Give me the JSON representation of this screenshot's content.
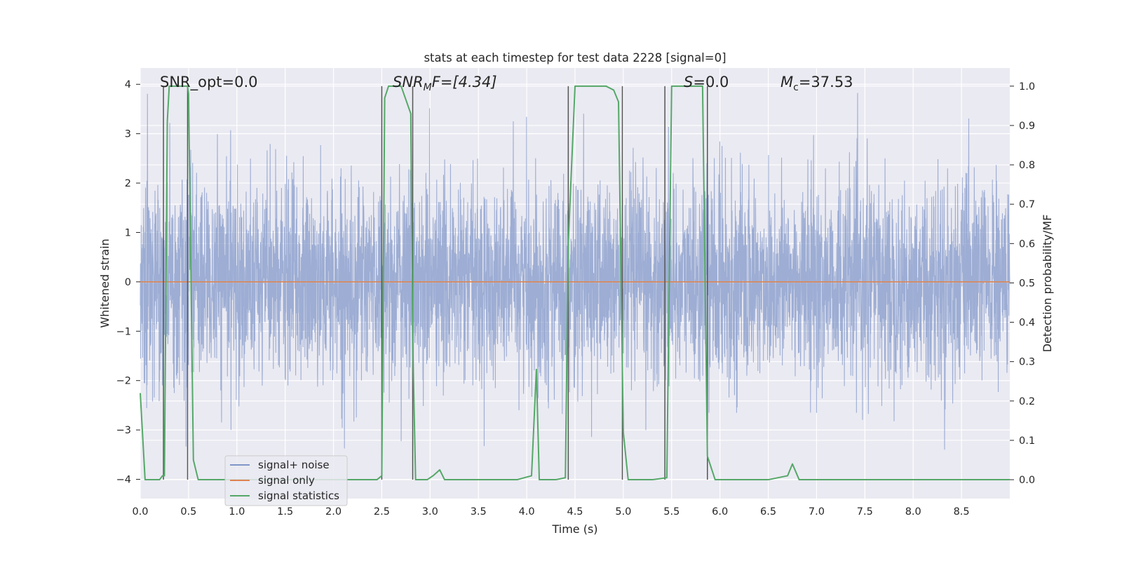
{
  "chart_data": {
    "type": "line",
    "title": "stats at each timestep for test data 2228 [signal=0]",
    "xlabel": "Time (s)",
    "ylabel_left": "Whitened strain",
    "ylabel_right": "Detection probability/MF",
    "xlim": [
      0.0,
      9.0
    ],
    "ylim_left": [
      -4.39,
      4.33
    ],
    "ylim_right": [
      -0.048,
      1.046
    ],
    "x_ticks": [
      "0.0",
      "0.5",
      "1.0",
      "1.5",
      "2.0",
      "2.5",
      "3.0",
      "3.5",
      "4.0",
      "4.5",
      "5.0",
      "5.5",
      "6.0",
      "6.5",
      "7.0",
      "7.5",
      "8.0",
      "8.5"
    ],
    "y_ticks_left": [
      "4",
      "3",
      "2",
      "1",
      "0",
      "−1",
      "−2",
      "−3",
      "−4"
    ],
    "y_ticks_left_values": [
      4,
      3,
      2,
      1,
      0,
      -1,
      -2,
      -3,
      -4
    ],
    "y_ticks_right": [
      "1.0",
      "0.9",
      "0.8",
      "0.7",
      "0.6",
      "0.5",
      "0.4",
      "0.3",
      "0.2",
      "0.1",
      "0.0"
    ],
    "y_ticks_right_values": [
      1.0,
      0.9,
      0.8,
      0.7,
      0.6,
      0.5,
      0.4,
      0.3,
      0.2,
      0.1,
      0.0
    ],
    "grid": true,
    "legend_position": "lower-left",
    "annotations": {
      "snr_opt": "SNR_opt=0.0",
      "snr_mf_italic": "SNR",
      "snr_mf_sub": "M",
      "snr_mf_tail": "F=[4.34]",
      "s_italic": "S",
      "s_tail": "=0.0",
      "mc_italic": "M",
      "mc_sub": "c",
      "mc_tail": "=37.53"
    },
    "vertical_markers": [
      0.24,
      0.49,
      2.5,
      2.82,
      4.43,
      4.99,
      5.43,
      5.87
    ],
    "series": [
      {
        "name": "signal+ noise",
        "axis": "left",
        "color": "#7f96c8",
        "style": "noise",
        "approx_std": 1.0,
        "approx_peak": 3.9
      },
      {
        "name": "signal only",
        "axis": "left",
        "color": "#dd8452",
        "x": [
          0.0,
          9.0
        ],
        "y": [
          0.0,
          0.0
        ]
      },
      {
        "name": "signal statistics",
        "axis": "right",
        "color": "#55a868",
        "x": [
          0.0,
          0.05,
          0.1,
          0.15,
          0.2,
          0.23,
          0.25,
          0.28,
          0.3,
          0.49,
          0.5,
          0.55,
          0.6,
          0.65,
          0.7,
          1.0,
          1.5,
          2.0,
          2.3,
          2.45,
          2.5,
          2.53,
          2.57,
          2.7,
          2.8,
          2.82,
          2.85,
          2.9,
          2.97,
          3.03,
          3.1,
          3.15,
          3.3,
          3.6,
          3.9,
          4.05,
          4.1,
          4.13,
          4.2,
          4.25,
          4.3,
          4.4,
          4.43,
          4.5,
          4.6,
          4.75,
          4.82,
          4.9,
          4.95,
          5.0,
          5.05,
          5.12,
          5.3,
          5.45,
          5.5,
          5.55,
          5.7,
          5.82,
          5.87,
          5.95,
          6.0,
          6.2,
          6.5,
          6.7,
          6.75,
          6.82,
          7.0,
          7.5,
          8.0,
          8.5,
          9.0
        ],
        "y": [
          0.22,
          0.0,
          0.0,
          0.0,
          0.0,
          0.01,
          0.01,
          0.91,
          1.0,
          1.0,
          0.98,
          0.05,
          0.0,
          0.0,
          0.0,
          0.0,
          0.0,
          0.0,
          0.0,
          0.0,
          0.01,
          0.97,
          1.0,
          1.0,
          0.93,
          0.35,
          0.0,
          0.0,
          0.0,
          0.01,
          0.025,
          0.0,
          0.0,
          0.0,
          0.0,
          0.01,
          0.28,
          0.0,
          0.0,
          0.0,
          0.0,
          0.005,
          0.6,
          1.0,
          1.0,
          1.0,
          1.0,
          0.99,
          0.96,
          0.12,
          0.0,
          0.0,
          0.0,
          0.005,
          1.0,
          1.0,
          1.0,
          1.0,
          0.06,
          0.0,
          0.0,
          0.0,
          0.0,
          0.01,
          0.04,
          0.0,
          0.0,
          0.0,
          0.0,
          0.0,
          0.0
        ]
      }
    ]
  }
}
